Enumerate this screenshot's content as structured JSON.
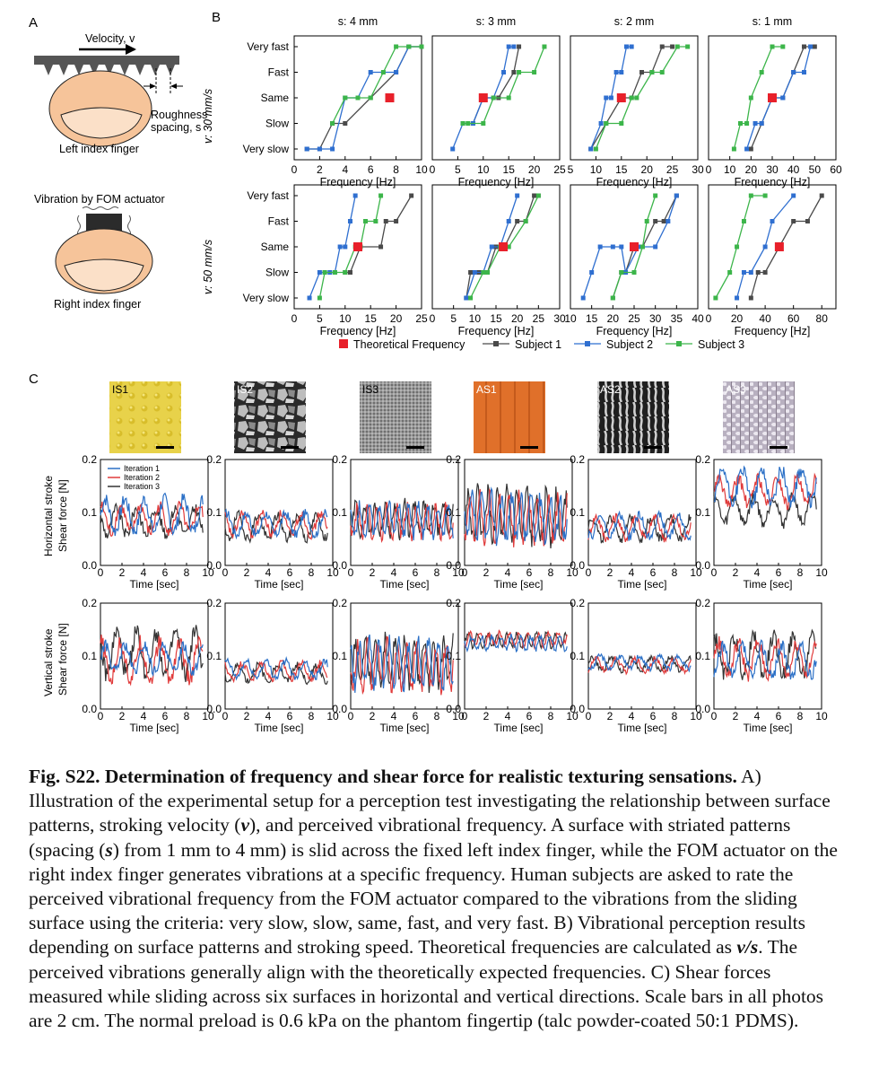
{
  "figure": {
    "panel_labels": {
      "a": "A",
      "b": "B",
      "c": "C"
    },
    "panel_a": {
      "velocity_label": "Velocity, v",
      "roughness_label_1": "Roughness",
      "roughness_label_2": "spacing, s",
      "left_finger_label": "Left index finger",
      "vibration_label": "Vibration by FOM actuator",
      "right_finger_label": "Right index finger"
    },
    "panel_b": {
      "column_titles": [
        "s: 4 mm",
        "s: 3 mm",
        "s: 2 mm",
        "s: 1 mm"
      ],
      "row_titles": [
        "v: 30 mm/s",
        "v: 50 mm/s"
      ],
      "y_categories": [
        "Very slow",
        "Slow",
        "Same",
        "Fast",
        "Very fast"
      ],
      "xlabel": "Frequency [Hz]",
      "legend": [
        "Theoretical Frequency",
        "Subject 1",
        "Subject 2",
        "Subject 3"
      ]
    },
    "panel_c": {
      "surfaces": [
        "IS1",
        "IS2",
        "IS3",
        "AS1",
        "AS2",
        "AS3"
      ],
      "row_titles": [
        "Horizontal stroke",
        "Vertical stroke"
      ],
      "ylabel": "Shear force [N]",
      "xlabel": "Time [sec]",
      "legend": [
        "Iteration 1",
        "Iteration 2",
        "Iteration 3"
      ]
    }
  },
  "colors": {
    "subject1": "#4a4a4a",
    "subject2": "#2f6fd0",
    "subject3": "#3cb54a",
    "theoretical": "#e8202a",
    "iteration1": "#2a6fc6",
    "iteration2": "#e03b3b",
    "iteration3": "#333333"
  },
  "chart_data": [
    {
      "type": "line",
      "title": "s: 4 mm",
      "row": "v: 30 mm/s",
      "xlabel": "Frequency [Hz]",
      "xlim": [
        0,
        10
      ],
      "categories": [
        "Very slow",
        "Slow",
        "Same",
        "Fast",
        "Very fast"
      ],
      "theoretical": [
        7.5,
        2
      ],
      "series": [
        {
          "name": "Subject 1",
          "x": [
            1,
            2,
            3,
            4,
            6,
            8,
            9,
            10
          ],
          "y": [
            0,
            0,
            1,
            1,
            2,
            3,
            4,
            4
          ]
        },
        {
          "name": "Subject 2",
          "x": [
            1,
            2,
            3,
            4,
            5,
            6,
            8,
            9,
            10
          ],
          "y": [
            0,
            0,
            0,
            2,
            2,
            3,
            3,
            4,
            4
          ]
        },
        {
          "name": "Subject 3",
          "x": [
            3,
            4,
            5,
            6,
            7,
            8,
            9,
            10
          ],
          "y": [
            1,
            2,
            2,
            2,
            3,
            4,
            4,
            4
          ]
        }
      ]
    },
    {
      "type": "line",
      "title": "s: 3 mm",
      "row": "v: 30 mm/s",
      "xlabel": "Frequency [Hz]",
      "xlim": [
        0,
        25
      ],
      "categories": [
        "Very slow",
        "Slow",
        "Same",
        "Fast",
        "Very fast"
      ],
      "theoretical": [
        10,
        2
      ],
      "series": [
        {
          "name": "Subject 1",
          "x": [
            8,
            10,
            13,
            16,
            17
          ],
          "y": [
            1,
            2,
            2,
            3,
            4
          ]
        },
        {
          "name": "Subject 2",
          "x": [
            4,
            6,
            8,
            10,
            12,
            14,
            15,
            16
          ],
          "y": [
            0,
            1,
            1,
            2,
            2,
            3,
            4,
            4
          ]
        },
        {
          "name": "Subject 3",
          "x": [
            6,
            7,
            10,
            12,
            15,
            17,
            20,
            22
          ],
          "y": [
            1,
            1,
            1,
            2,
            2,
            3,
            3,
            4
          ]
        }
      ]
    },
    {
      "type": "line",
      "title": "s: 2 mm",
      "row": "v: 30 mm/s",
      "xlabel": "Frequency [Hz]",
      "xlim": [
        5,
        30
      ],
      "categories": [
        "Very slow",
        "Slow",
        "Same",
        "Fast",
        "Very fast"
      ],
      "theoretical": [
        15,
        2
      ],
      "series": [
        {
          "name": "Subject 1",
          "x": [
            9,
            12,
            15,
            17,
            19,
            21,
            23,
            25
          ],
          "y": [
            0,
            1,
            2,
            2,
            3,
            3,
            4,
            4
          ]
        },
        {
          "name": "Subject 2",
          "x": [
            9,
            11,
            12,
            13,
            14,
            15,
            16,
            17
          ],
          "y": [
            0,
            1,
            2,
            2,
            3,
            3,
            4,
            4
          ]
        },
        {
          "name": "Subject 3",
          "x": [
            10,
            12,
            15,
            17,
            18,
            21,
            23,
            26,
            28
          ],
          "y": [
            0,
            1,
            1,
            2,
            2,
            3,
            3,
            4,
            4
          ]
        }
      ]
    },
    {
      "type": "line",
      "title": "s: 1 mm",
      "row": "v: 30 mm/s",
      "xlabel": "Frequency [Hz]",
      "xlim": [
        0,
        60
      ],
      "categories": [
        "Very slow",
        "Slow",
        "Same",
        "Fast",
        "Very fast"
      ],
      "theoretical": [
        30,
        2
      ],
      "series": [
        {
          "name": "Subject 1",
          "x": [
            20,
            25,
            30,
            35,
            40,
            45,
            50
          ],
          "y": [
            0,
            1,
            2,
            2,
            3,
            4,
            4
          ]
        },
        {
          "name": "Subject 2",
          "x": [
            18,
            22,
            25,
            30,
            35,
            40,
            45,
            48
          ],
          "y": [
            0,
            1,
            1,
            2,
            2,
            3,
            3,
            4
          ]
        },
        {
          "name": "Subject 3",
          "x": [
            12,
            15,
            18,
            20,
            25,
            30,
            35
          ],
          "y": [
            0,
            1,
            1,
            2,
            3,
            4,
            4
          ]
        }
      ]
    },
    {
      "type": "line",
      "title": "s: 4 mm",
      "row": "v: 50 mm/s",
      "xlabel": "Frequency [Hz]",
      "xlim": [
        0,
        25
      ],
      "categories": [
        "Very slow",
        "Slow",
        "Same",
        "Fast",
        "Very fast"
      ],
      "theoretical": [
        12.5,
        2
      ],
      "series": [
        {
          "name": "Subject 1",
          "x": [
            10,
            11,
            13,
            17,
            18,
            20,
            23
          ],
          "y": [
            1,
            1,
            2,
            2,
            3,
            3,
            4
          ]
        },
        {
          "name": "Subject 2",
          "x": [
            3,
            5,
            6,
            7,
            8,
            9,
            10,
            11,
            12
          ],
          "y": [
            0,
            1,
            1,
            1,
            1,
            2,
            2,
            3,
            4
          ]
        },
        {
          "name": "Subject 3",
          "x": [
            5,
            6,
            8,
            10,
            12,
            13,
            14,
            16,
            17
          ],
          "y": [
            0,
            1,
            1,
            1,
            2,
            2,
            3,
            3,
            4
          ]
        }
      ]
    },
    {
      "type": "line",
      "title": "s: 3 mm",
      "row": "v: 50 mm/s",
      "xlabel": "Frequency [Hz]",
      "xlim": [
        0,
        30
      ],
      "categories": [
        "Very slow",
        "Slow",
        "Same",
        "Fast",
        "Very fast"
      ],
      "theoretical": [
        16.7,
        2
      ],
      "series": [
        {
          "name": "Subject 1",
          "x": [
            8,
            9,
            11,
            13,
            15,
            17,
            20,
            22,
            24,
            25
          ],
          "y": [
            0,
            1,
            1,
            1,
            2,
            2,
            3,
            3,
            4,
            4
          ]
        },
        {
          "name": "Subject 2",
          "x": [
            8,
            10,
            12,
            14,
            16,
            18,
            20
          ],
          "y": [
            0,
            1,
            1,
            2,
            2,
            3,
            4
          ]
        },
        {
          "name": "Subject 3",
          "x": [
            9,
            12,
            13,
            16,
            18,
            22,
            25
          ],
          "y": [
            0,
            1,
            1,
            2,
            2,
            3,
            4
          ]
        }
      ]
    },
    {
      "type": "line",
      "title": "s: 2 mm",
      "row": "v: 50 mm/s",
      "xlabel": "Frequency [Hz]",
      "xlim": [
        10,
        40
      ],
      "categories": [
        "Very slow",
        "Slow",
        "Same",
        "Fast",
        "Very fast"
      ],
      "theoretical": [
        25,
        2
      ],
      "series": [
        {
          "name": "Subject 1",
          "x": [
            20,
            22,
            23,
            25,
            27,
            30,
            32,
            35
          ],
          "y": [
            0,
            1,
            1,
            2,
            2,
            3,
            3,
            4
          ]
        },
        {
          "name": "Subject 2",
          "x": [
            13,
            15,
            17,
            20,
            22,
            23,
            26,
            30,
            33,
            35
          ],
          "y": [
            0,
            1,
            2,
            2,
            2,
            1,
            2,
            2,
            3,
            4
          ]
        },
        {
          "name": "Subject 3",
          "x": [
            20,
            22,
            25,
            27,
            28,
            30
          ],
          "y": [
            0,
            1,
            1,
            2,
            3,
            4
          ]
        }
      ]
    },
    {
      "type": "line",
      "title": "s: 1 mm",
      "row": "v: 50 mm/s",
      "xlabel": "Frequency [Hz]",
      "xlim": [
        0,
        90
      ],
      "categories": [
        "Very slow",
        "Slow",
        "Same",
        "Fast",
        "Very fast"
      ],
      "theoretical": [
        50,
        2
      ],
      "series": [
        {
          "name": "Subject 1",
          "x": [
            30,
            35,
            40,
            50,
            60,
            70,
            80
          ],
          "y": [
            0,
            1,
            1,
            2,
            3,
            3,
            4
          ]
        },
        {
          "name": "Subject 2",
          "x": [
            20,
            25,
            30,
            40,
            45,
            60
          ],
          "y": [
            0,
            1,
            1,
            2,
            3,
            4
          ]
        },
        {
          "name": "Subject 3",
          "x": [
            5,
            15,
            20,
            25,
            30,
            40
          ],
          "y": [
            0,
            1,
            2,
            3,
            4,
            4
          ]
        }
      ]
    },
    {
      "type": "line",
      "title": "Shear force",
      "rows": [
        "Horizontal stroke",
        "Vertical stroke"
      ],
      "columns": [
        "IS1",
        "IS2",
        "IS3",
        "AS1",
        "AS2",
        "AS3"
      ],
      "xlabel": "Time [sec]",
      "ylabel": "Shear force [N]",
      "xlim": [
        0,
        10
      ],
      "ylim": [
        0,
        0.2
      ],
      "means": [
        [
          [
            0.095,
            0.087,
            0.083
          ],
          [
            0.078,
            0.078,
            0.072
          ],
          [
            0.085,
            0.084,
            0.088
          ],
          [
            0.09,
            0.088,
            0.092
          ],
          [
            0.074,
            0.072,
            0.07
          ],
          [
            0.15,
            0.14,
            0.105
          ]
        ],
        [
          [
            0.095,
            0.09,
            0.105
          ],
          [
            0.075,
            0.072,
            0.068
          ],
          [
            0.085,
            0.082,
            0.088
          ],
          [
            0.125,
            0.132,
            0.13
          ],
          [
            0.088,
            0.083,
            0.085
          ],
          [
            0.09,
            0.095,
            0.1
          ]
        ]
      ],
      "amplitudes": [
        [
          [
            0.03,
            0.025,
            0.025
          ],
          [
            0.02,
            0.02,
            0.022
          ],
          [
            0.028,
            0.028,
            0.028
          ],
          [
            0.04,
            0.04,
            0.045
          ],
          [
            0.02,
            0.02,
            0.02
          ],
          [
            0.03,
            0.025,
            0.025
          ]
        ],
        [
          [
            0.025,
            0.035,
            0.04
          ],
          [
            0.015,
            0.015,
            0.015
          ],
          [
            0.04,
            0.04,
            0.04
          ],
          [
            0.012,
            0.012,
            0.012
          ],
          [
            0.012,
            0.012,
            0.012
          ],
          [
            0.03,
            0.03,
            0.035
          ]
        ]
      ]
    }
  ],
  "caption": {
    "title": "Fig. S22. Determination of frequency and shear force for realistic texturing sensations.",
    "seg1": " A) Illustration of the experimental setup for a perception test investigating the relationship between surface patterns, stroking velocity (",
    "var_v": "v",
    "seg2": "), and perceived vibrational frequency. A surface with striated patterns (spacing (",
    "var_s": "s",
    "seg3": ") from 1 mm to 4 mm) is slid across the fixed left index finger, while the FOM actuator on the right index finger generates vibrations at a specific frequency. Human subjects are asked to rate the perceived vibrational frequency from the FOM actuator compared to the vibrations from the sliding surface using the criteria: very slow, slow, same, fast, and very fast. B) Vibrational perception results depending on surface patterns and stroking speed. Theoretical frequencies are calculated as ",
    "var_vs": "v/s",
    "seg4": ". The perceived vibrations generally align with the theoretically expected frequencies. C) Shear forces measured while sliding across six surfaces in horizontal and vertical directions. Scale bars in all photos are 2 cm. The normal preload is 0.6 kPa on the phantom fingertip (talc powder-coated 50:1 PDMS)."
  }
}
